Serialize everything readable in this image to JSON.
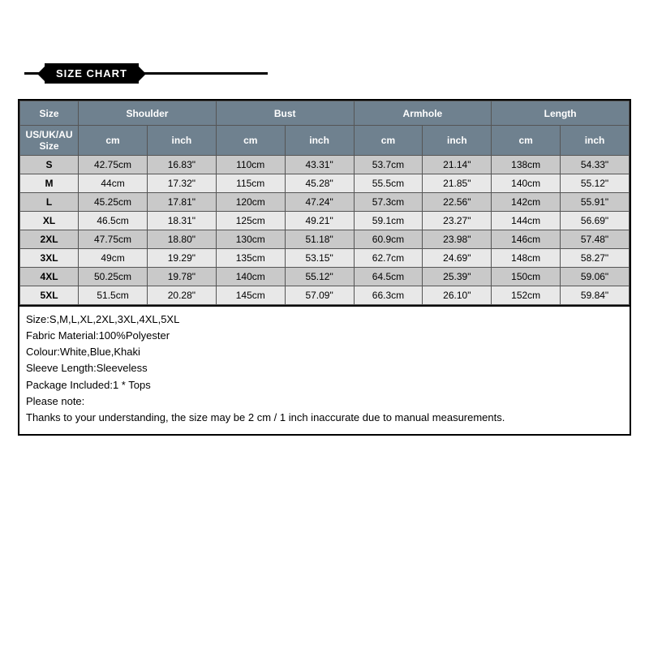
{
  "banner": {
    "title": "SIZE CHART"
  },
  "table": {
    "head1": {
      "size": "Size",
      "shoulder": "Shoulder",
      "bust": "Bust",
      "armhole": "Armhole",
      "length": "Length"
    },
    "head2": {
      "sizelabel": "US/UK/AU Size",
      "cm": "cm",
      "inch": "inch"
    },
    "rows": [
      {
        "size": "S",
        "shoulder_cm": "42.75cm",
        "shoulder_in": "16.83\"",
        "bust_cm": "110cm",
        "bust_in": "43.31\"",
        "armhole_cm": "53.7cm",
        "armhole_in": "21.14\"",
        "length_cm": "138cm",
        "length_in": "54.33\""
      },
      {
        "size": "M",
        "shoulder_cm": "44cm",
        "shoulder_in": "17.32\"",
        "bust_cm": "115cm",
        "bust_in": "45.28\"",
        "armhole_cm": "55.5cm",
        "armhole_in": "21.85\"",
        "length_cm": "140cm",
        "length_in": "55.12\""
      },
      {
        "size": "L",
        "shoulder_cm": "45.25cm",
        "shoulder_in": "17.81\"",
        "bust_cm": "120cm",
        "bust_in": "47.24\"",
        "armhole_cm": "57.3cm",
        "armhole_in": "22.56\"",
        "length_cm": "142cm",
        "length_in": "55.91\""
      },
      {
        "size": "XL",
        "shoulder_cm": "46.5cm",
        "shoulder_in": "18.31\"",
        "bust_cm": "125cm",
        "bust_in": "49.21\"",
        "armhole_cm": "59.1cm",
        "armhole_in": "23.27\"",
        "length_cm": "144cm",
        "length_in": "56.69\""
      },
      {
        "size": "2XL",
        "shoulder_cm": "47.75cm",
        "shoulder_in": "18.80\"",
        "bust_cm": "130cm",
        "bust_in": "51.18\"",
        "armhole_cm": "60.9cm",
        "armhole_in": "23.98\"",
        "length_cm": "146cm",
        "length_in": "57.48\""
      },
      {
        "size": "3XL",
        "shoulder_cm": "49cm",
        "shoulder_in": "19.29\"",
        "bust_cm": "135cm",
        "bust_in": "53.15\"",
        "armhole_cm": "62.7cm",
        "armhole_in": "24.69\"",
        "length_cm": "148cm",
        "length_in": "58.27\""
      },
      {
        "size": "4XL",
        "shoulder_cm": "50.25cm",
        "shoulder_in": "19.78\"",
        "bust_cm": "140cm",
        "bust_in": "55.12\"",
        "armhole_cm": "64.5cm",
        "armhole_in": "25.39\"",
        "length_cm": "150cm",
        "length_in": "59.06\""
      },
      {
        "size": "5XL",
        "shoulder_cm": "51.5cm",
        "shoulder_in": "20.28\"",
        "bust_cm": "145cm",
        "bust_in": "57.09\"",
        "armhole_cm": "66.3cm",
        "armhole_in": "26.10\"",
        "length_cm": "152cm",
        "length_in": "59.84\""
      }
    ]
  },
  "desc": {
    "l1": "Size:S,M,L,XL,2XL,3XL,4XL,5XL",
    "l2": "Fabric Material:100%Polyester",
    "l3": "Colour:White,Blue,Khaki",
    "l4": "Sleeve Length:Sleeveless",
    "l5": "Package Included:1 * Tops",
    "l6": "Please note:",
    "l7": "Thanks to your understanding, the size may be 2 cm / 1 inch inaccurate due to manual measurements."
  },
  "style": {
    "header_bg": "#6f818f",
    "row_odd_bg": "#c9c9c9",
    "row_even_bg": "#e8e8e8",
    "border_color": "#000000",
    "text_color": "#000000",
    "header_text_color": "#ffffff"
  }
}
